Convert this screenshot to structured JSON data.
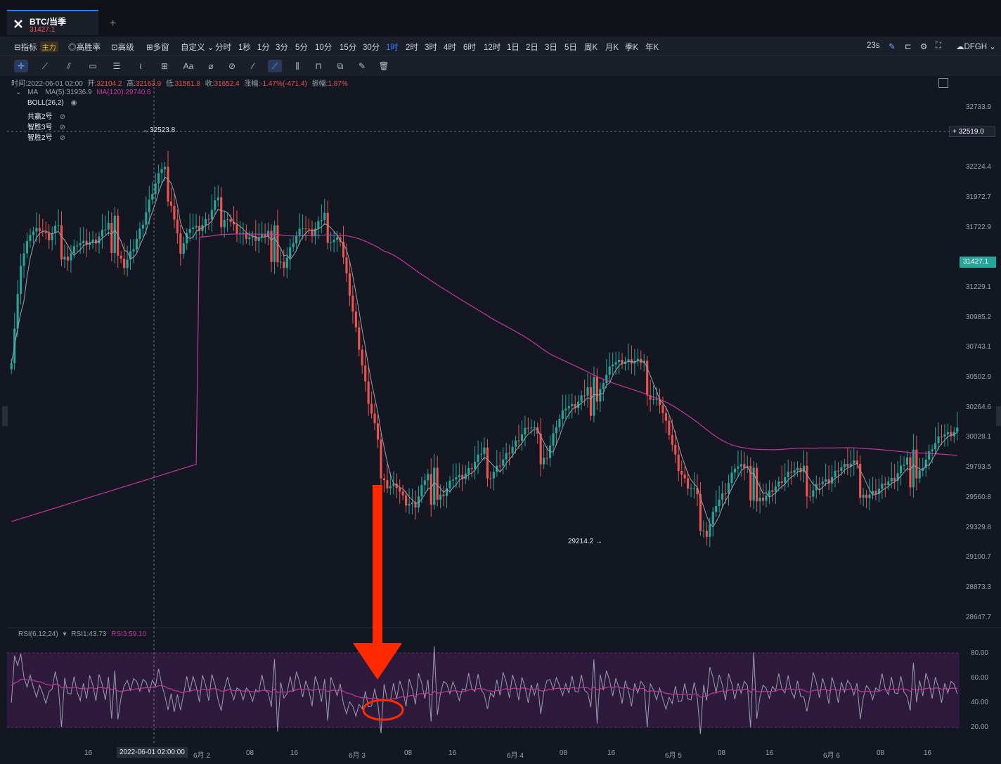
{
  "tab": {
    "symbol": "BTC/当季",
    "price": "31427.1"
  },
  "toolbar": {
    "indicator": "指标",
    "main_badge": "主力",
    "high_win": "高胜率",
    "advanced": "高级",
    "multi_window": "多窗",
    "custom": "自定义",
    "intervals": [
      "分时",
      "1秒",
      "1分",
      "3分",
      "5分",
      "10分",
      "15分",
      "30分",
      "1时",
      "2时",
      "3时",
      "4时",
      "6时",
      "12时",
      "1日",
      "2日",
      "3日",
      "5日",
      "周K",
      "月K",
      "季K",
      "年K"
    ],
    "active_interval": "1时",
    "countdown": "23s",
    "account": "DFGH"
  },
  "drawing_tools": [
    "crosshair",
    "trend-line",
    "parallel-channel",
    "fib",
    "rectangle",
    "hlines",
    "wave",
    "measure",
    "text",
    "brush",
    "magnet",
    "ruler",
    "lock-draw",
    "stats",
    "lock",
    "copy",
    "edit",
    "trash"
  ],
  "info": {
    "time_label": "时间:",
    "time": "2022-06-01 02:00",
    "open_label": "开:",
    "open": "32104.2",
    "high_label": "高:",
    "high": "32163.9",
    "low_label": "低:",
    "low": "31561.8",
    "close_label": "收:",
    "close": "31652.4",
    "change_label": "涨幅:",
    "change": "-1.47%(-471.4)",
    "amp_label": "振幅:",
    "amp": "1.87%"
  },
  "ma": {
    "label": "MA",
    "ma5": "MA(5):31936.9",
    "ma120": "MA(120):29740.6"
  },
  "indicators": [
    "BOLL(26,2)",
    "共赢2号",
    "智胜3号",
    "智胜2号"
  ],
  "price_axis": [
    "32733.9",
    "32224.4",
    "31972.7",
    "31722.9",
    "31229.1",
    "30985.2",
    "30743.1",
    "30502.9",
    "30264.6",
    "30028.1",
    "29793.5",
    "29560.8",
    "29329.8",
    "29100.7",
    "28873.3",
    "28647.7"
  ],
  "crosshair_price": "32519.0",
  "last_price": "31427.1",
  "max_marker": "32523.8",
  "min_marker": "29214.2",
  "rsi": {
    "label": "RSI(6,12,24)",
    "rsi1": "RSI1:43.73",
    "rsi3": "RSI3:59.10"
  },
  "rsi_axis": [
    "80.00",
    "60.00",
    "40.00",
    "20.00"
  ],
  "time_axis": [
    "16",
    "6月 2",
    "08",
    "16",
    "6月 3",
    "08",
    "16",
    "6月 4",
    "08",
    "16",
    "6月 5",
    "08",
    "16",
    "6月 6",
    "08",
    "16"
  ],
  "time_highlight": "2022-06-01 02:00:00",
  "colors": {
    "up": "#26a69a",
    "down": "#ef5350",
    "ma120": "#c2389a",
    "ma5": "#9aa0ab",
    "rsi_zone": "#2d1a3d",
    "annotation": "#ff2a00"
  },
  "chart_data": {
    "type": "candlestick",
    "ylim": [
      28500,
      32850
    ],
    "candles_close_approx": [
      30750,
      31500,
      31700,
      31680,
      31550,
      31620,
      31580,
      31650,
      31600,
      31560,
      31620,
      31680,
      31500,
      31600,
      31750,
      31950,
      32100,
      32050,
      31600,
      31750,
      31680,
      31720,
      31850,
      31920,
      31750,
      31650,
      31580,
      31560,
      31600,
      31500,
      31650,
      31720,
      31600,
      31680,
      31750,
      31700,
      31200,
      30700,
      30200,
      29850,
      29700,
      29650,
      29450,
      29380,
      29550,
      29600,
      29620,
      29700,
      29650,
      29680,
      29750,
      29800,
      29850,
      29900,
      29950,
      30000,
      29900,
      29950,
      30150,
      30250,
      30200,
      30250,
      30350,
      30550,
      30650,
      30600,
      30550,
      30500,
      30450,
      30350,
      30050,
      29700,
      29500,
      29400,
      29300,
      29500,
      29550,
      29700,
      29650,
      29600,
      29580,
      29600,
      29620,
      29650,
      29600,
      29650,
      29700,
      29650,
      29700,
      29680,
      29650,
      29620,
      29600,
      29620,
      29600,
      29680,
      29750,
      29850,
      29950,
      30000,
      29950
    ]
  }
}
